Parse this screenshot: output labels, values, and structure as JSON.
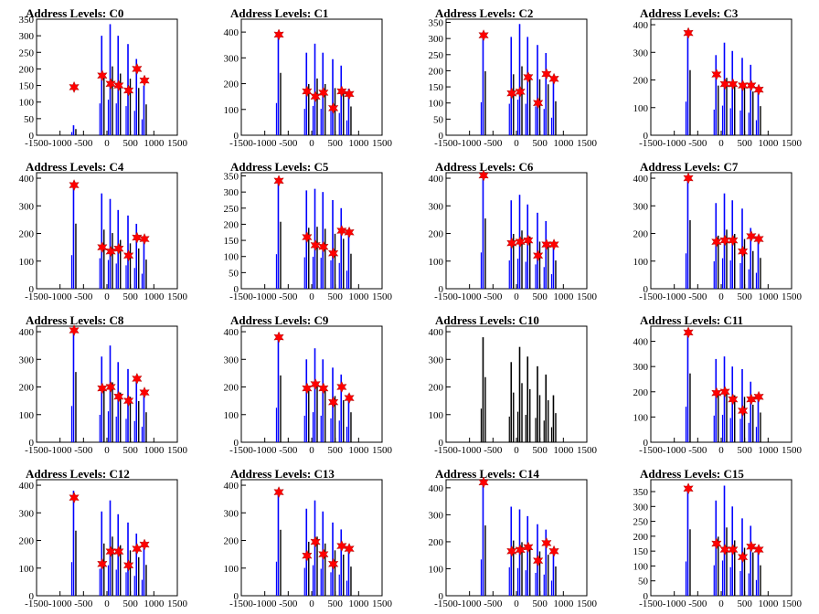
{
  "chart_data": [
    {
      "type": "bar",
      "title": "Address Levels: C0",
      "xlim": [
        -1500,
        1500
      ],
      "ylim": [
        0,
        350
      ],
      "yticks": [
        0,
        50,
        100,
        150,
        200,
        250,
        300,
        350
      ],
      "xticks": [
        -1500,
        -1000,
        -500,
        0,
        500,
        1000,
        1500
      ],
      "peaks": {
        "x": [
          -700,
          -100,
          80,
          250,
          460,
          640,
          800
        ],
        "height": [
          30,
          300,
          335,
          300,
          275,
          230,
          150
        ]
      },
      "markers": {
        "x": [
          -700,
          -100,
          80,
          250,
          460,
          640,
          800
        ],
        "y": [
          145,
          180,
          155,
          150,
          135,
          200,
          165
        ]
      }
    },
    {
      "type": "bar",
      "title": "Address Levels: C1",
      "xlim": [
        -1500,
        1500
      ],
      "ylim": [
        0,
        450
      ],
      "yticks": [
        0,
        100,
        200,
        300,
        400
      ],
      "xticks": [
        -1500,
        -1000,
        -500,
        0,
        500,
        1000,
        1500
      ],
      "peaks": {
        "x": [
          -700,
          -100,
          80,
          250,
          460,
          640,
          800
        ],
        "height": [
          390,
          320,
          355,
          320,
          295,
          270,
          180
        ]
      },
      "markers": {
        "x": [
          -700,
          -100,
          80,
          250,
          460,
          640,
          800
        ],
        "y": [
          390,
          170,
          150,
          165,
          105,
          170,
          160
        ]
      }
    },
    {
      "type": "bar",
      "title": "Address Levels: C2",
      "xlim": [
        -1500,
        1500
      ],
      "ylim": [
        0,
        360
      ],
      "yticks": [
        0,
        50,
        100,
        150,
        200,
        250,
        300,
        350
      ],
      "xticks": [
        -1500,
        -1000,
        -500,
        0,
        500,
        1000,
        1500
      ],
      "peaks": {
        "x": [
          -700,
          -100,
          80,
          250,
          460,
          640,
          800
        ],
        "height": [
          320,
          305,
          345,
          305,
          280,
          255,
          170
        ]
      },
      "markers": {
        "x": [
          -700,
          -100,
          80,
          250,
          460,
          640,
          800
        ],
        "y": [
          310,
          130,
          135,
          180,
          100,
          190,
          175
        ]
      }
    },
    {
      "type": "bar",
      "title": "Address Levels: C3",
      "xlim": [
        -1500,
        1500
      ],
      "ylim": [
        0,
        420
      ],
      "yticks": [
        0,
        100,
        200,
        300,
        400
      ],
      "xticks": [
        -1500,
        -1000,
        -500,
        0,
        500,
        1000,
        1500
      ],
      "peaks": {
        "x": [
          -700,
          -100,
          80,
          250,
          460,
          640,
          800
        ],
        "height": [
          380,
          290,
          335,
          305,
          280,
          255,
          170
        ]
      },
      "markers": {
        "x": [
          -700,
          -100,
          80,
          250,
          460,
          640,
          800
        ],
        "y": [
          370,
          220,
          185,
          185,
          180,
          180,
          165
        ]
      }
    },
    {
      "type": "bar",
      "title": "Address Levels: C4",
      "xlim": [
        -1500,
        1500
      ],
      "ylim": [
        0,
        420
      ],
      "yticks": [
        0,
        100,
        200,
        300,
        400
      ],
      "xticks": [
        -1500,
        -1000,
        -500,
        0,
        500,
        1000,
        1500
      ],
      "peaks": {
        "x": [
          -700,
          -100,
          80,
          250,
          460,
          640,
          800
        ],
        "height": [
          380,
          345,
          325,
          285,
          265,
          235,
          170
        ]
      },
      "markers": {
        "x": [
          -700,
          -100,
          80,
          250,
          460,
          640,
          800
        ],
        "y": [
          375,
          150,
          135,
          145,
          120,
          185,
          180
        ]
      }
    },
    {
      "type": "bar",
      "title": "Address Levels: C5",
      "xlim": [
        -1500,
        1500
      ],
      "ylim": [
        0,
        360
      ],
      "yticks": [
        0,
        50,
        100,
        150,
        200,
        250,
        300,
        350
      ],
      "xticks": [
        -1500,
        -1000,
        -500,
        0,
        500,
        1000,
        1500
      ],
      "peaks": {
        "x": [
          -700,
          -100,
          80,
          250,
          460,
          640,
          800
        ],
        "height": [
          335,
          305,
          310,
          300,
          275,
          250,
          175
        ]
      },
      "markers": {
        "x": [
          -700,
          -100,
          80,
          250,
          460,
          640,
          800
        ],
        "y": [
          335,
          160,
          135,
          130,
          110,
          180,
          175
        ]
      }
    },
    {
      "type": "bar",
      "title": "Address Levels: C6",
      "xlim": [
        -1500,
        1500
      ],
      "ylim": [
        0,
        420
      ],
      "yticks": [
        0,
        100,
        200,
        300,
        400
      ],
      "xticks": [
        -1500,
        -1000,
        -500,
        0,
        500,
        1000,
        1500
      ],
      "peaks": {
        "x": [
          -700,
          -100,
          80,
          250,
          460,
          640,
          800
        ],
        "height": [
          410,
          320,
          340,
          305,
          275,
          245,
          165
        ]
      },
      "markers": {
        "x": [
          -700,
          -100,
          80,
          250,
          460,
          640,
          800
        ],
        "y": [
          410,
          165,
          170,
          175,
          120,
          160,
          160
        ]
      }
    },
    {
      "type": "bar",
      "title": "Address Levels: C7",
      "xlim": [
        -1500,
        1500
      ],
      "ylim": [
        0,
        420
      ],
      "yticks": [
        0,
        100,
        200,
        300,
        400
      ],
      "xticks": [
        -1500,
        -1000,
        -500,
        0,
        500,
        1000,
        1500
      ],
      "peaks": {
        "x": [
          -700,
          -100,
          80,
          250,
          460,
          640,
          800
        ],
        "height": [
          400,
          310,
          345,
          320,
          290,
          220,
          180
        ]
      },
      "markers": {
        "x": [
          -700,
          -100,
          80,
          250,
          460,
          640,
          800
        ],
        "y": [
          400,
          170,
          175,
          175,
          135,
          190,
          180
        ]
      }
    },
    {
      "type": "bar",
      "title": "Address Levels: C8",
      "xlim": [
        -1500,
        1500
      ],
      "ylim": [
        0,
        420
      ],
      "yticks": [
        0,
        100,
        200,
        300,
        400
      ],
      "xticks": [
        -1500,
        -1000,
        -500,
        0,
        500,
        1000,
        1500
      ],
      "peaks": {
        "x": [
          -700,
          -100,
          80,
          250,
          460,
          640,
          800
        ],
        "height": [
          410,
          310,
          350,
          290,
          265,
          240,
          175
        ]
      },
      "markers": {
        "x": [
          -700,
          -100,
          80,
          250,
          460,
          640,
          800
        ],
        "y": [
          405,
          195,
          200,
          165,
          150,
          230,
          180
        ]
      }
    },
    {
      "type": "bar",
      "title": "Address Levels: C9",
      "xlim": [
        -1500,
        1500
      ],
      "ylim": [
        0,
        420
      ],
      "yticks": [
        0,
        100,
        200,
        300,
        400
      ],
      "xticks": [
        -1500,
        -1000,
        -500,
        0,
        500,
        1000,
        1500
      ],
      "peaks": {
        "x": [
          -700,
          -100,
          80,
          250,
          460,
          640,
          800
        ],
        "height": [
          390,
          300,
          340,
          300,
          270,
          245,
          175
        ]
      },
      "markers": {
        "x": [
          -700,
          -100,
          80,
          250,
          460,
          640,
          800
        ],
        "y": [
          380,
          195,
          210,
          195,
          145,
          200,
          160
        ]
      }
    },
    {
      "type": "bar",
      "title": "Address Levels: C10",
      "xlim": [
        -1500,
        1500
      ],
      "ylim": [
        0,
        420
      ],
      "yticks": [
        0,
        100,
        200,
        300,
        400
      ],
      "xticks": [
        -1500,
        -1000,
        -500,
        0,
        500,
        1000,
        1500
      ],
      "peaks": {
        "x": [
          -700,
          -100,
          80,
          250,
          460,
          640,
          800
        ],
        "height": [
          380,
          290,
          345,
          310,
          275,
          245,
          170
        ]
      },
      "markers": {
        "x": [],
        "y": []
      }
    },
    {
      "type": "bar",
      "title": "Address Levels: C11",
      "xlim": [
        -1500,
        1500
      ],
      "ylim": [
        0,
        460
      ],
      "yticks": [
        0,
        100,
        200,
        300,
        400
      ],
      "xticks": [
        -1500,
        -1000,
        -500,
        0,
        500,
        1000,
        1500
      ],
      "peaks": {
        "x": [
          -700,
          -100,
          80,
          250,
          460,
          640,
          800
        ],
        "height": [
          440,
          330,
          340,
          300,
          290,
          240,
          190
        ]
      },
      "markers": {
        "x": [
          -700,
          -100,
          80,
          250,
          460,
          640,
          800
        ],
        "y": [
          435,
          195,
          200,
          170,
          125,
          170,
          180
        ]
      }
    },
    {
      "type": "bar",
      "title": "Address Levels: C12",
      "xlim": [
        -1500,
        1500
      ],
      "ylim": [
        0,
        420
      ],
      "yticks": [
        0,
        100,
        200,
        300,
        400
      ],
      "xticks": [
        -1500,
        -1000,
        -500,
        0,
        500,
        1000,
        1500
      ],
      "peaks": {
        "x": [
          -700,
          -100,
          80,
          250,
          460,
          640,
          800
        ],
        "height": [
          380,
          305,
          345,
          295,
          265,
          225,
          180
        ]
      },
      "markers": {
        "x": [
          -700,
          -100,
          80,
          250,
          460,
          640,
          800
        ],
        "y": [
          355,
          115,
          160,
          160,
          110,
          170,
          185
        ]
      }
    },
    {
      "type": "bar",
      "title": "Address Levels: C13",
      "xlim": [
        -1500,
        1500
      ],
      "ylim": [
        0,
        420
      ],
      "yticks": [
        0,
        100,
        200,
        300,
        400
      ],
      "xticks": [
        -1500,
        -1000,
        -500,
        0,
        500,
        1000,
        1500
      ],
      "peaks": {
        "x": [
          -700,
          -100,
          80,
          250,
          460,
          640,
          800
        ],
        "height": [
          385,
          315,
          345,
          305,
          265,
          240,
          170
        ]
      },
      "markers": {
        "x": [
          -700,
          -100,
          80,
          250,
          460,
          640,
          800
        ],
        "y": [
          375,
          145,
          195,
          150,
          115,
          180,
          170
        ]
      }
    },
    {
      "type": "bar",
      "title": "Address Levels: C14",
      "xlim": [
        -1500,
        1500
      ],
      "ylim": [
        0,
        430
      ],
      "yticks": [
        0,
        100,
        200,
        300,
        400
      ],
      "xticks": [
        -1500,
        -1000,
        -500,
        0,
        500,
        1000,
        1500
      ],
      "peaks": {
        "x": [
          -700,
          -100,
          80,
          250,
          460,
          640,
          800
        ],
        "height": [
          420,
          330,
          320,
          295,
          265,
          245,
          175
        ]
      },
      "markers": {
        "x": [
          -700,
          -100,
          80,
          250,
          460,
          640,
          800
        ],
        "y": [
          420,
          165,
          170,
          180,
          130,
          195,
          165
        ]
      }
    },
    {
      "type": "bar",
      "title": "Address Levels: C15",
      "xlim": [
        -1500,
        1500
      ],
      "ylim": [
        0,
        390
      ],
      "yticks": [
        0,
        50,
        100,
        150,
        200,
        250,
        300,
        350
      ],
      "xticks": [
        -1500,
        -1000,
        -500,
        0,
        500,
        1000,
        1500
      ],
      "peaks": {
        "x": [
          -700,
          -100,
          80,
          250,
          460,
          640,
          800
        ],
        "height": [
          360,
          320,
          370,
          300,
          260,
          235,
          165
        ]
      },
      "markers": {
        "x": [
          -700,
          -100,
          80,
          250,
          460,
          640,
          800
        ],
        "y": [
          360,
          175,
          155,
          155,
          130,
          165,
          155
        ]
      }
    }
  ],
  "colors": {
    "bar": "#0000ff",
    "bar_shadow": "#000000",
    "marker": "#ff0000",
    "axis": "#000000"
  }
}
